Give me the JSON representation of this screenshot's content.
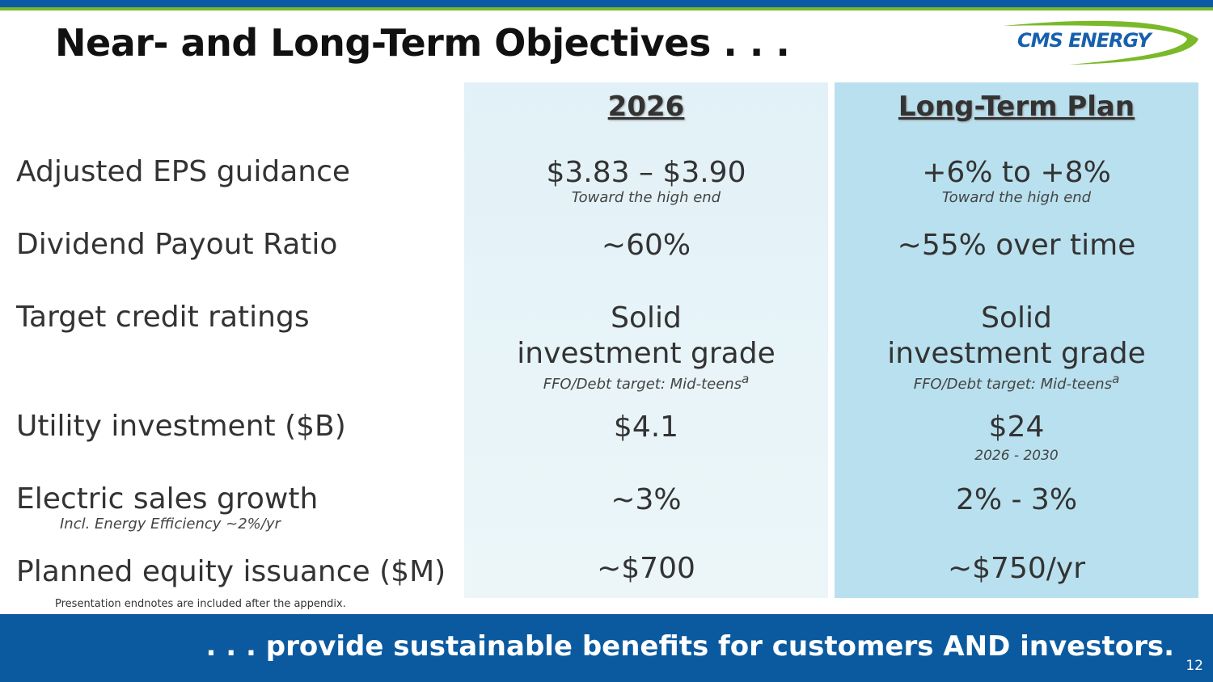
{
  "header": {
    "title": "Near- and Long-Term Objectives . . .",
    "logo": "CMS ENERGY"
  },
  "columns": [
    "2026",
    "Long-Term Plan"
  ],
  "rows": [
    {
      "label": "Adjusted EPS guidance",
      "y2026": "$3.83 – $3.90",
      "y2026_sub": "Toward the high end",
      "lt": "+6% to +8%",
      "lt_sub": "Toward the high end"
    },
    {
      "label": "Dividend Payout Ratio",
      "y2026": "~60%",
      "lt": "~55% over time"
    },
    {
      "label": "Target credit ratings",
      "y2026_l1": "Solid",
      "y2026_l2": "investment grade",
      "y2026_sub": "FFO/Debt target: Mid-teens",
      "sup": "a",
      "lt_l1": "Solid",
      "lt_l2": "investment grade",
      "lt_sub": "FFO/Debt target: Mid-teens"
    },
    {
      "label": "Utility investment ($B)",
      "y2026": "$4.1",
      "lt": "$24",
      "lt_sub": "2026 - 2030"
    },
    {
      "label": "Electric sales growth",
      "label_sub": "Incl. Energy Efficiency ~2%/yr",
      "y2026": "~3%",
      "lt": "2% - 3%"
    },
    {
      "label": "Planned equity issuance ($M)",
      "y2026": "~$700",
      "lt": "~$750/yr"
    }
  ],
  "endnote": "Presentation endnotes are included after the appendix.",
  "footer": {
    "tagline": ". . . provide sustainable benefits for customers AND investors.",
    "page": "12"
  },
  "colors": {
    "blue": "#0b5aa0",
    "green": "#7ab929",
    "col1": "#e6f3f8",
    "col2": "#b9e0ee"
  }
}
